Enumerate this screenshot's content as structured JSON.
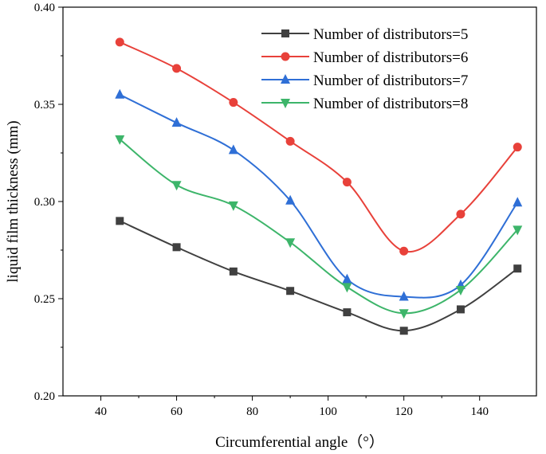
{
  "chart_data": {
    "type": "line",
    "title": "",
    "xlabel": "Circumferential angle（°）",
    "ylabel": "liquid film thickness (mm)",
    "xlim": [
      30,
      155
    ],
    "ylim": [
      0.2,
      0.4
    ],
    "xticks": [
      40,
      60,
      80,
      100,
      120,
      140
    ],
    "yticks": [
      0.2,
      0.25,
      0.3,
      0.35,
      0.4
    ],
    "xtick_labels": [
      "40",
      "60",
      "80",
      "100",
      "120",
      "140"
    ],
    "ytick_labels": [
      "0.20",
      "0.25",
      "0.30",
      "0.35",
      "0.40"
    ],
    "grid": false,
    "legend_position": "top-right",
    "x": [
      45,
      60,
      75,
      90,
      105,
      120,
      135,
      150
    ],
    "series": [
      {
        "name": "Number of distributors=5",
        "color": "#404040",
        "marker": "square",
        "values": [
          0.29,
          0.2765,
          0.264,
          0.254,
          0.243,
          0.2335,
          0.2445,
          0.2655
        ]
      },
      {
        "name": "Number of distributors=6",
        "color": "#e8413a",
        "marker": "circle",
        "values": [
          0.382,
          0.3685,
          0.351,
          0.331,
          0.31,
          0.2745,
          0.2935,
          0.328
        ]
      },
      {
        "name": "Number of distributors=7",
        "color": "#2f6fd6",
        "marker": "triangle-up",
        "values": [
          0.355,
          0.3405,
          0.3265,
          0.3005,
          0.26,
          0.251,
          0.257,
          0.2995
        ]
      },
      {
        "name": "Number of distributors=8",
        "color": "#3db56a",
        "marker": "triangle-down",
        "values": [
          0.332,
          0.3085,
          0.298,
          0.279,
          0.256,
          0.2425,
          0.2545,
          0.2855
        ]
      }
    ]
  }
}
